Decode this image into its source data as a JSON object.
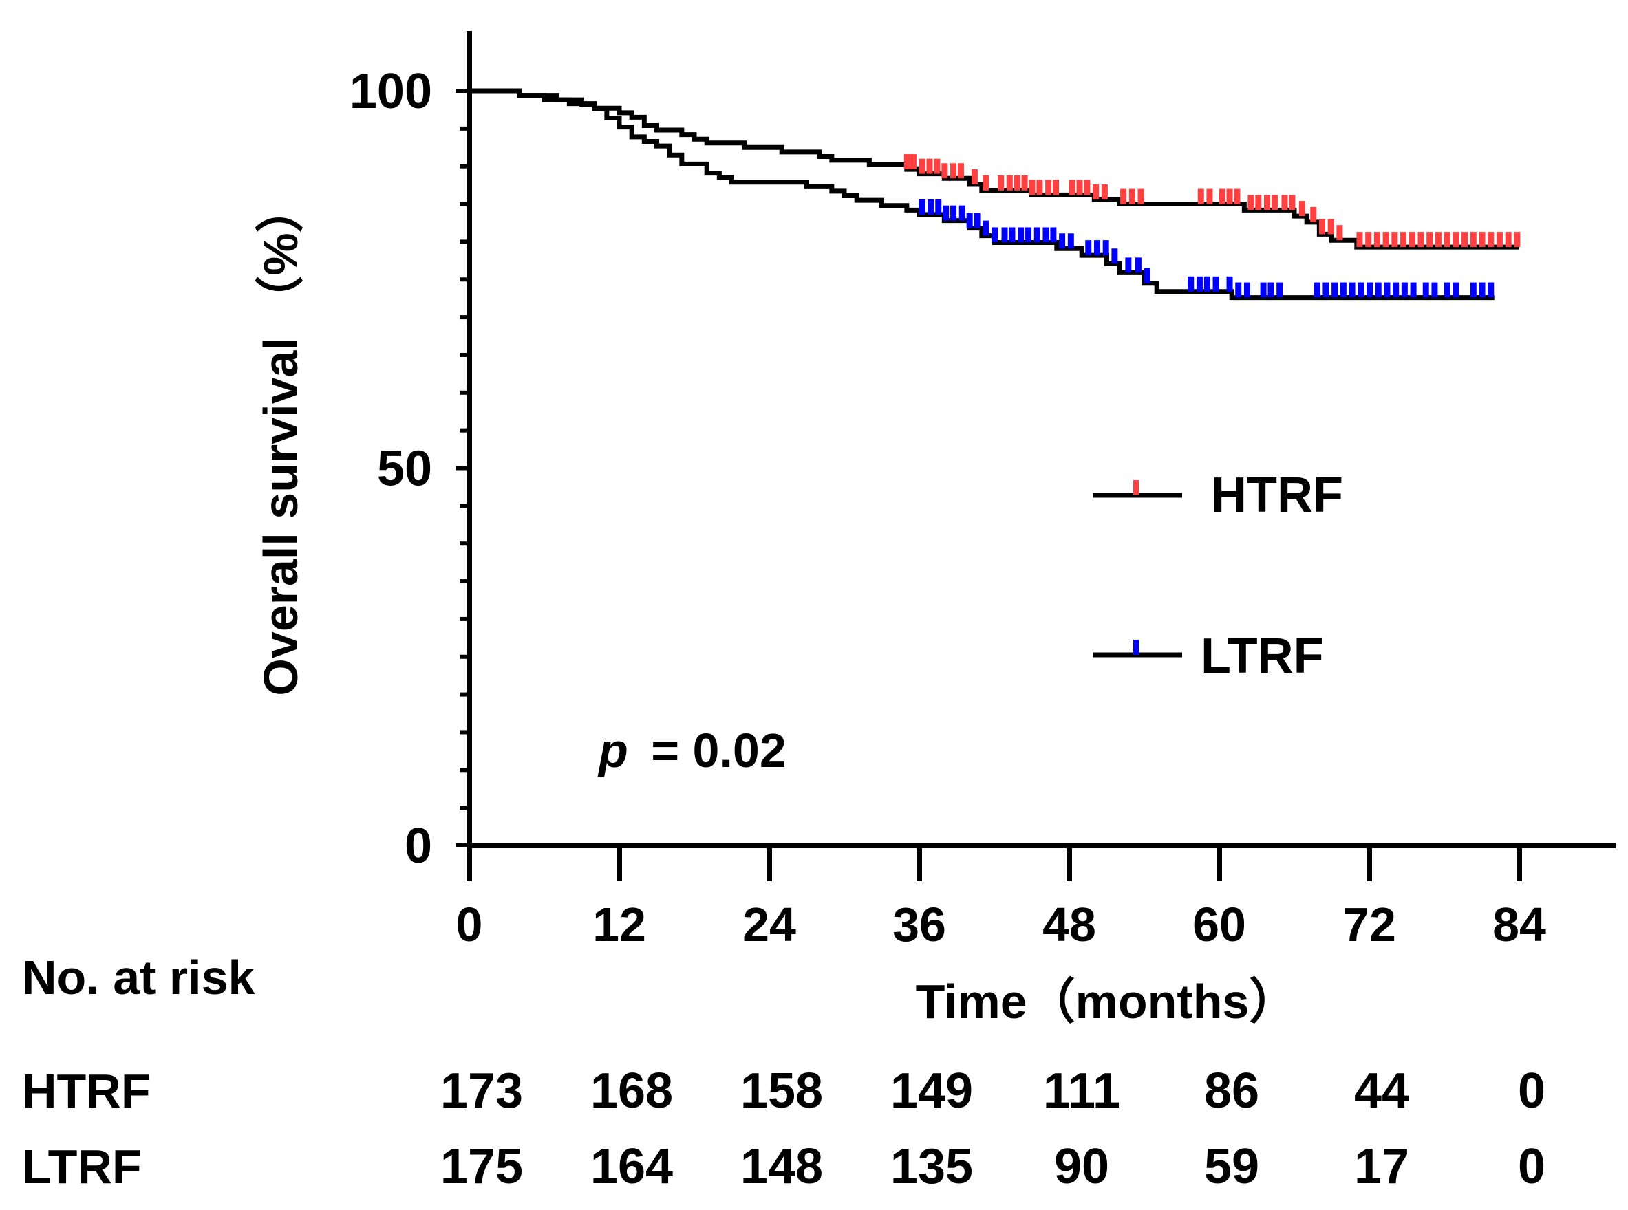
{
  "chart_data": {
    "type": "line",
    "subtype": "kaplan-meier",
    "ylabel": "Overall survival （%）",
    "xlabel": "Time（months）",
    "xlim": [
      0,
      84
    ],
    "ylim": [
      0,
      100
    ],
    "x_ticks": [
      0,
      12,
      24,
      36,
      48,
      60,
      72,
      84
    ],
    "y_ticks": [
      0,
      50,
      100
    ],
    "y_minor_tick_step": 5,
    "grid": false,
    "legend_placement": "center-right",
    "p_value": {
      "symbol": "p",
      "text": "= 0.02"
    },
    "series": [
      {
        "name": "HTRF",
        "line_color": "#000000",
        "censor_color": "#ff4040",
        "steps": [
          [
            0,
            100
          ],
          [
            4,
            99.4
          ],
          [
            6,
            98.8
          ],
          [
            8,
            98.3
          ],
          [
            10,
            97.7
          ],
          [
            12,
            97.1
          ],
          [
            13,
            96.5
          ],
          [
            14,
            95.4
          ],
          [
            15,
            94.8
          ],
          [
            17,
            94.2
          ],
          [
            18,
            93.6
          ],
          [
            19,
            93.1
          ],
          [
            22,
            92.5
          ],
          [
            25,
            91.9
          ],
          [
            28,
            91.3
          ],
          [
            29,
            90.8
          ],
          [
            32,
            90.2
          ],
          [
            35,
            89.6
          ],
          [
            36,
            89.0
          ],
          [
            38,
            88.4
          ],
          [
            40,
            87.6
          ],
          [
            41,
            86.8
          ],
          [
            45,
            86.2
          ],
          [
            50,
            85.6
          ],
          [
            52,
            85.0
          ],
          [
            62,
            84.2
          ],
          [
            66,
            83.4
          ],
          [
            67,
            82.6
          ],
          [
            68,
            81.0
          ],
          [
            69,
            80.2
          ],
          [
            71,
            79.3
          ],
          [
            84,
            79.3
          ]
        ],
        "censored": [
          35,
          35.5,
          36.2,
          36.8,
          37.4,
          38,
          38.7,
          39.3,
          40.4,
          41.3,
          42.5,
          43.2,
          43.8,
          44.4,
          45,
          45.6,
          46.3,
          46.9,
          48.2,
          48.8,
          49.4,
          50.1,
          50.8,
          52.3,
          53,
          53.7,
          58.5,
          59.2,
          60.2,
          60.8,
          61.4,
          62.5,
          63.1,
          63.8,
          64.4,
          65.2,
          65.8,
          66.6,
          67.5,
          68.2,
          68.9,
          69.6,
          71.2,
          71.9,
          72.6,
          73.3,
          74,
          74.7,
          75.4,
          76.1,
          76.8,
          77.5,
          78.2,
          78.9,
          79.6,
          80.3,
          81,
          81.7,
          82.4,
          83.1,
          83.8
        ]
      },
      {
        "name": "LTRF",
        "line_color": "#000000",
        "censor_color": "#0000ff",
        "steps": [
          [
            0,
            100
          ],
          [
            4,
            99.4
          ],
          [
            7,
            98.8
          ],
          [
            9,
            98.2
          ],
          [
            10,
            97.6
          ],
          [
            11,
            96.4
          ],
          [
            12,
            95.2
          ],
          [
            13,
            93.9
          ],
          [
            14,
            93.3
          ],
          [
            15,
            92.7
          ],
          [
            16,
            91.5
          ],
          [
            17,
            90.3
          ],
          [
            19,
            89.1
          ],
          [
            20,
            88.5
          ],
          [
            21,
            87.9
          ],
          [
            27,
            87.3
          ],
          [
            29,
            86.7
          ],
          [
            30,
            86.1
          ],
          [
            31,
            85.5
          ],
          [
            33,
            84.8
          ],
          [
            35,
            84.2
          ],
          [
            36,
            83.6
          ],
          [
            38,
            82.8
          ],
          [
            40,
            81.8
          ],
          [
            41,
            80.8
          ],
          [
            42,
            79.9
          ],
          [
            47,
            79.1
          ],
          [
            49,
            78.2
          ],
          [
            51,
            77.1
          ],
          [
            52,
            75.9
          ],
          [
            54,
            74.5
          ],
          [
            55,
            73.4
          ],
          [
            61,
            72.6
          ],
          [
            82,
            72.6
          ]
        ],
        "censored": [
          36.2,
          36.9,
          37.5,
          38.1,
          38.7,
          39.4,
          40,
          40.6,
          41.3,
          42,
          42.8,
          43.4,
          44.1,
          44.7,
          45.4,
          46.1,
          46.7,
          47.4,
          48.1,
          49.5,
          50.2,
          50.9,
          51.6,
          52.7,
          53.5,
          54.2,
          57.7,
          58.4,
          59,
          59.7,
          60.8,
          61.5,
          62.2,
          63.5,
          64.1,
          64.8,
          67.8,
          68.5,
          69.2,
          69.9,
          70.6,
          71.3,
          72,
          72.7,
          73.4,
          74.1,
          74.8,
          75.5,
          76.5,
          77.2,
          78.2,
          78.9,
          80.3,
          81,
          81.7
        ]
      }
    ],
    "risk_table": {
      "title": "No. at risk",
      "rows": [
        {
          "label": "HTRF",
          "values": [
            "173",
            "168",
            "158",
            "149",
            "111",
            "86",
            "44",
            "0"
          ]
        },
        {
          "label": "LTRF",
          "values": [
            "175",
            "164",
            "148",
            "135",
            "90",
            "59",
            "17",
            "0"
          ]
        }
      ]
    }
  }
}
